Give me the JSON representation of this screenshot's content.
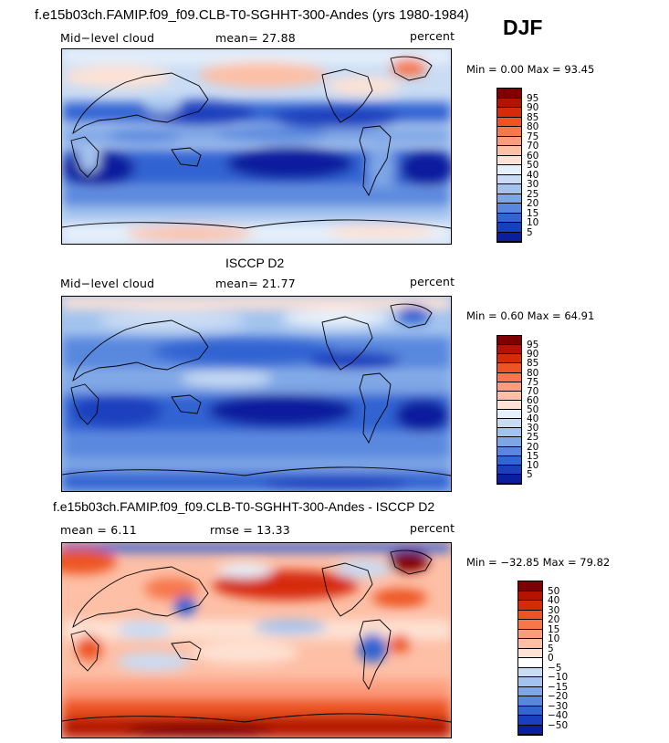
{
  "header": {
    "title": "f.e15b03ch.FAMIP.f09_f09.CLB-T0-SGHHT-300-Andes (yrs 1980-1984)",
    "season": "DJF"
  },
  "panels": [
    {
      "left_label": "Mid−level cloud",
      "mean_text": "mean=  27.88",
      "units": "percent",
      "minmax": "Min =   0.00 Max =  93.45",
      "legend_colors": [
        "#7f0000",
        "#b31300",
        "#d62b08",
        "#ed5424",
        "#f7774b",
        "#fc9c7c",
        "#fdbfa6",
        "#fee2d4",
        "#e6f0fa",
        "#c9dcf4",
        "#a3c3ee",
        "#7ea6e6",
        "#5887de",
        "#3264d2",
        "#1a3fbe",
        "#0a1f9e"
      ],
      "legend_ticks": [
        "95",
        "90",
        "85",
        "80",
        "75",
        "70",
        "60",
        "50",
        "40",
        "30",
        "25",
        "20",
        "15",
        "10",
        "5"
      ]
    },
    {
      "title": "ISCCP D2",
      "left_label": "Mid−level cloud",
      "mean_text": "mean=  21.77",
      "units": "percent",
      "minmax": "Min =   0.60 Max =  64.91",
      "legend_colors": [
        "#7f0000",
        "#b31300",
        "#d62b08",
        "#ed5424",
        "#f7774b",
        "#fc9c7c",
        "#fdbfa6",
        "#fee2d4",
        "#e6f0fa",
        "#c9dcf4",
        "#a3c3ee",
        "#7ea6e6",
        "#5887de",
        "#3264d2",
        "#1a3fbe",
        "#0a1f9e"
      ],
      "legend_ticks": [
        "95",
        "90",
        "85",
        "80",
        "75",
        "70",
        "60",
        "50",
        "40",
        "30",
        "25",
        "20",
        "15",
        "10",
        "5"
      ]
    },
    {
      "title": "f.e15b03ch.FAMIP.f09_f09.CLB-T0-SGHHT-300-Andes - ISCCP D2",
      "left_label": "mean =   6.11",
      "mean_text": "rmse =  13.33",
      "units": "percent",
      "minmax": "Min = −32.85 Max =  79.82",
      "legend_colors": [
        "#7f0000",
        "#b31300",
        "#d62b08",
        "#ed5424",
        "#f7774b",
        "#fc9c7c",
        "#fdbfa6",
        "#fee2d4",
        "#ffffff",
        "#c9dcf4",
        "#a3c3ee",
        "#7ea6e6",
        "#5887de",
        "#3264d2",
        "#1a3fbe",
        "#0a1f9e"
      ],
      "legend_ticks": [
        "50",
        "40",
        "30",
        "20",
        "15",
        "10",
        "5",
        "0",
        "−5",
        "−10",
        "−15",
        "−20",
        "−30",
        "−40",
        "−50"
      ]
    }
  ]
}
